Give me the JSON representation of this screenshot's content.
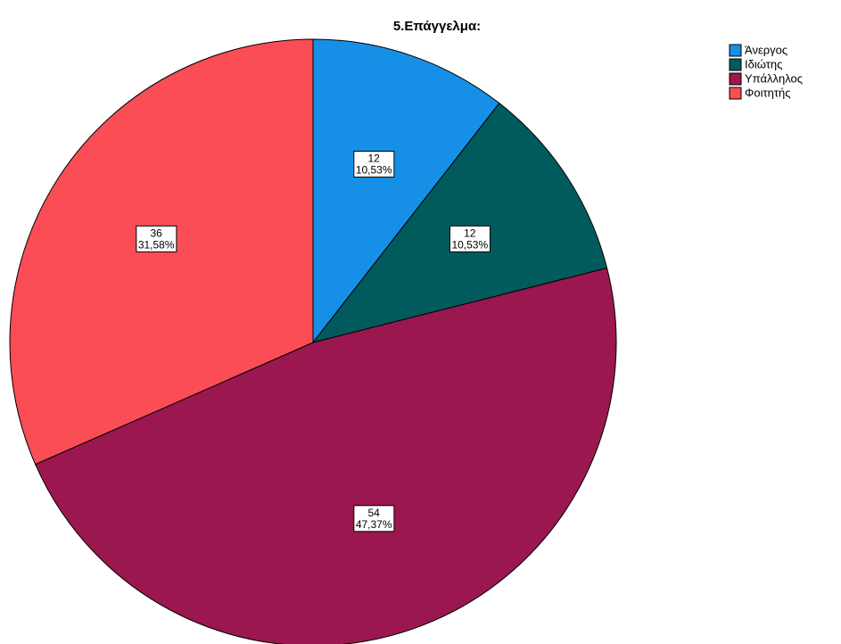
{
  "chart_data": {
    "type": "pie",
    "title": "5.Επάγγελμα:",
    "categories": [
      "Άνεργος",
      "Ιδιώτης",
      "Υπάλληλος",
      "Φοιτητής"
    ],
    "values": [
      12,
      12,
      54,
      36
    ],
    "percentages": [
      10.53,
      10.53,
      47.37,
      31.58
    ],
    "percentage_labels": [
      "10,53%",
      "10,53%",
      "47,37%",
      "31,58%"
    ],
    "colors": [
      "#1690e6",
      "#015b5c",
      "#9b1750",
      "#fa4d56"
    ],
    "legend": "right"
  }
}
